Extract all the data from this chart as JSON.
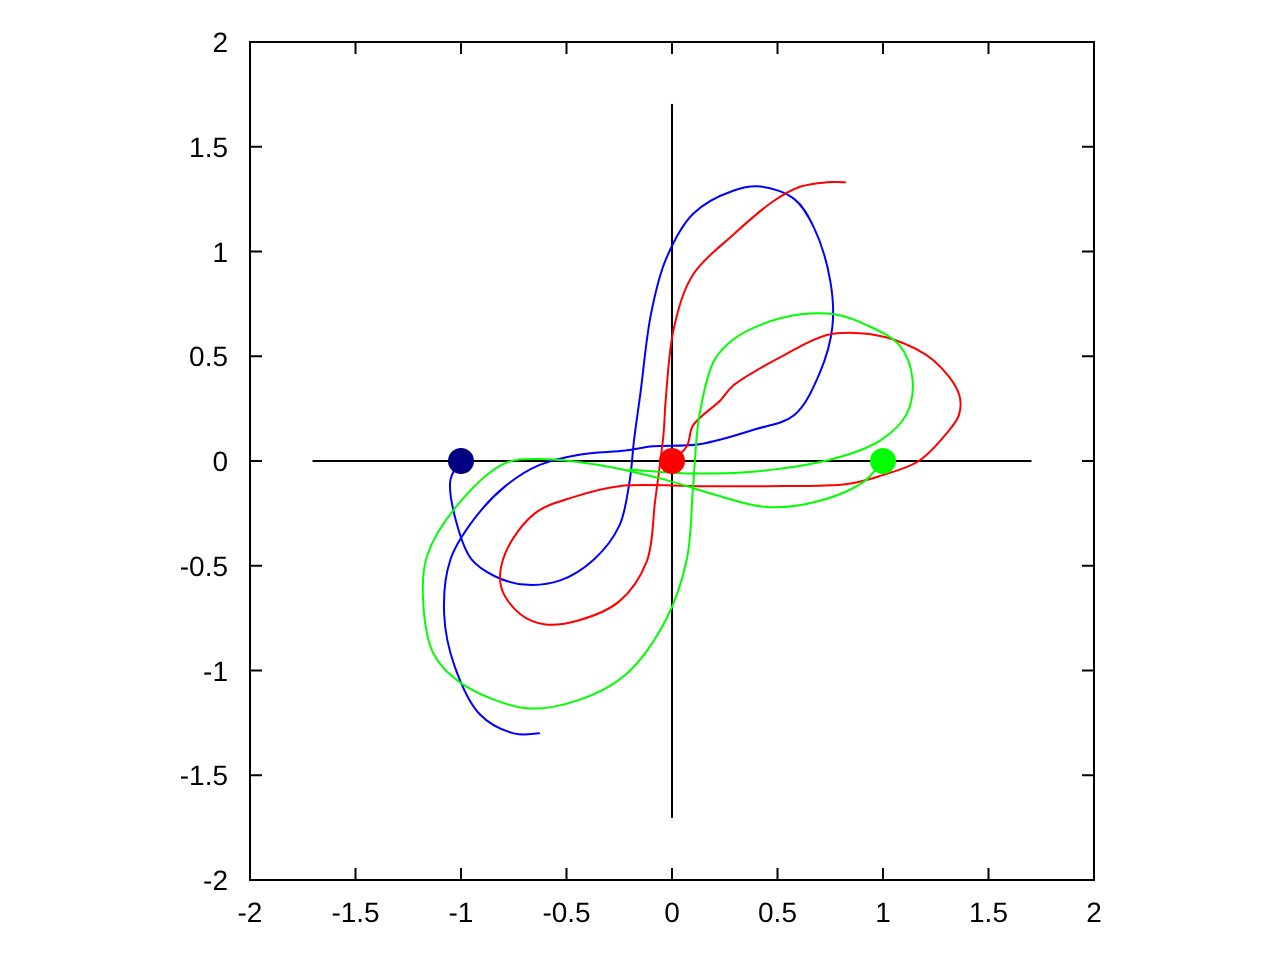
{
  "chart_data": {
    "type": "line",
    "xlim": [
      -2,
      2
    ],
    "ylim": [
      -2,
      2
    ],
    "xticks": [
      -2,
      -1.5,
      -1,
      -0.5,
      0,
      0.5,
      1,
      1.5,
      2
    ],
    "yticks": [
      -2,
      -1.5,
      -1,
      -0.5,
      0,
      0.5,
      1,
      1.5,
      2
    ],
    "series": [
      {
        "color": "#000000",
        "x": [
          -1.7,
          1.7
        ],
        "values": [
          0,
          0
        ]
      },
      {
        "color": "#000000",
        "x": [
          0,
          0
        ],
        "values": [
          -1.7,
          1.7
        ]
      },
      {
        "color": "#0000ff",
        "x": [
          -1.0,
          -1.05,
          -1.02,
          -0.95,
          -0.84,
          -0.7,
          -0.53,
          -0.37,
          -0.25,
          -0.2,
          -0.18,
          -0.15,
          -0.1,
          -0.03,
          0.1,
          0.29,
          0.42,
          0.58,
          0.67,
          0.75,
          0.76,
          0.7,
          0.58,
          0.39,
          0.13,
          -0.09,
          -0.22,
          -0.44,
          -0.63,
          -0.79,
          -0.94,
          -1.05,
          -1.08,
          -1.03,
          -0.91,
          -0.75,
          -0.63
        ],
        "values": [
          0.0,
          -0.09,
          -0.3,
          -0.47,
          -0.55,
          -0.59,
          -0.57,
          -0.47,
          -0.31,
          -0.09,
          0.1,
          0.32,
          0.7,
          0.96,
          1.18,
          1.29,
          1.31,
          1.25,
          1.12,
          0.86,
          0.64,
          0.42,
          0.22,
          0.15,
          0.08,
          0.07,
          0.05,
          0.03,
          -0.02,
          -0.12,
          -0.28,
          -0.47,
          -0.73,
          -0.98,
          -1.21,
          -1.3,
          -1.3
        ]
      },
      {
        "color": "#ff0000",
        "x": [
          0,
          0.07,
          0.1,
          0.23,
          0.29,
          0.54,
          0.73,
          0.89,
          1.05,
          1.24,
          1.36,
          1.36,
          1.3,
          1.17,
          0.99,
          0.83,
          0.45,
          0.13,
          -0.25,
          -0.46,
          -0.65,
          -0.79,
          -0.81,
          -0.72,
          -0.6,
          -0.44,
          -0.25,
          -0.12,
          -0.08,
          -0.04,
          -0.03,
          0.01,
          0.1,
          0.29,
          0.48,
          0.61,
          0.73,
          0.82
        ],
        "values": [
          0,
          0.07,
          0.17,
          0.29,
          0.36,
          0.51,
          0.6,
          0.61,
          0.58,
          0.48,
          0.32,
          0.22,
          0.13,
          0.0,
          -0.07,
          -0.11,
          -0.12,
          -0.12,
          -0.12,
          -0.17,
          -0.25,
          -0.44,
          -0.6,
          -0.73,
          -0.78,
          -0.76,
          -0.67,
          -0.48,
          -0.19,
          0.13,
          0.29,
          0.64,
          0.89,
          1.08,
          1.24,
          1.31,
          1.33,
          1.33
        ]
      },
      {
        "color": "#00ff00",
        "x": [
          0.99,
          0.92,
          0.7,
          0.45,
          0.2,
          -0.03,
          -0.34,
          -0.63,
          -0.79,
          -1.0,
          -1.16,
          -1.18,
          -1.13,
          -1.0,
          -0.69,
          -0.44,
          -0.22,
          -0.03,
          0.07,
          0.1,
          0.13,
          0.2,
          0.29,
          0.42,
          0.61,
          0.77,
          0.92,
          1.08,
          1.14,
          1.11,
          0.99,
          0.8,
          0.49,
          0.13,
          -0.2
        ],
        "values": [
          0.0,
          -0.09,
          -0.19,
          -0.22,
          -0.16,
          -0.09,
          -0.02,
          0.01,
          -0.01,
          -0.19,
          -0.45,
          -0.66,
          -0.92,
          -1.06,
          -1.18,
          -1.14,
          -1.02,
          -0.76,
          -0.47,
          -0.12,
          0.22,
          0.48,
          0.58,
          0.65,
          0.7,
          0.7,
          0.65,
          0.55,
          0.39,
          0.22,
          0.1,
          0.02,
          -0.04,
          -0.06,
          -0.04
        ]
      },
      {
        "type": "scatter",
        "marker": "circle",
        "color": "#000080",
        "x": [
          -1
        ],
        "values": [
          0
        ]
      },
      {
        "type": "scatter",
        "marker": "circle",
        "color": "#ff0000",
        "x": [
          0
        ],
        "values": [
          0
        ]
      },
      {
        "type": "scatter",
        "marker": "circle",
        "color": "#00ff00",
        "x": [
          1
        ],
        "values": [
          0
        ]
      }
    ]
  }
}
